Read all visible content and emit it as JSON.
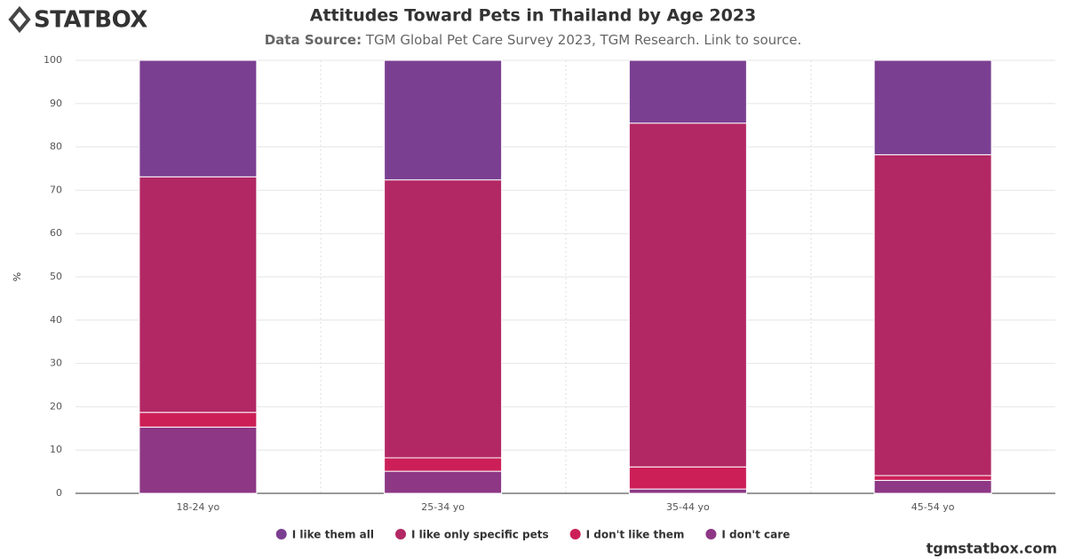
{
  "logo": "STATBOX",
  "footer": "tgmstatbox.com",
  "chart_data": {
    "type": "stacked-bar",
    "title": "Attitudes Toward Pets in Thailand by Age 2023",
    "subtitle_label": "Data Source:",
    "subtitle": "TGM Global Pet Care Survey 2023, TGM Research. Link to source.",
    "y_label": "%",
    "categories": [
      "18-24 yo",
      "25-34 yo",
      "35-44 yo",
      "45-54 yo"
    ],
    "series": [
      {
        "name": "I like them all",
        "color": "#7b3f91",
        "values": [
          26.9,
          27.6,
          14.5,
          21.8
        ]
      },
      {
        "name": "I like only specific pets",
        "color": "#b22864",
        "values": [
          54.4,
          64.2,
          79.4,
          74.1
        ]
      },
      {
        "name": "I don't like them",
        "color": "#cc1f58",
        "values": [
          3.4,
          3.1,
          5.1,
          1.1
        ]
      },
      {
        "name": "I don't care",
        "color": "#8d3785",
        "values": [
          15.3,
          5.1,
          1.0,
          3.0
        ]
      }
    ],
    "ylim": [
      0,
      100
    ],
    "yticks": [
      0,
      10,
      20,
      30,
      40,
      50,
      60,
      70,
      80,
      90,
      100
    ],
    "grid": true
  }
}
